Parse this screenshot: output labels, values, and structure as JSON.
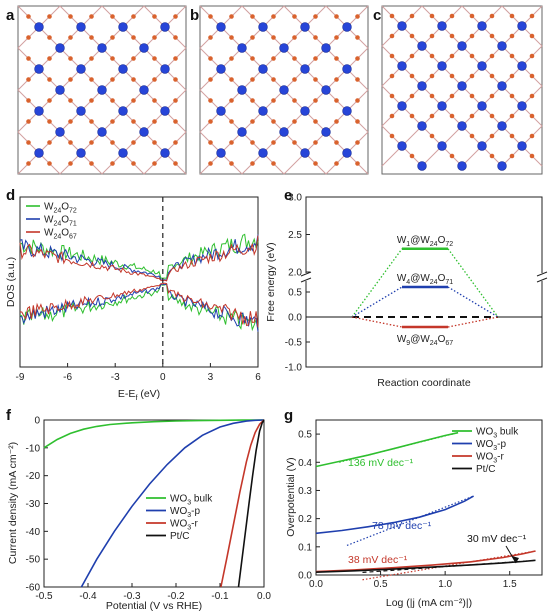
{
  "panel_labels": {
    "a": "a",
    "b": "b",
    "c": "c",
    "d": "d",
    "e": "e",
    "f": "f",
    "g": "g"
  },
  "colors": {
    "green": "#2fbf2f",
    "blue": "#1f3fae",
    "red": "#c4372a",
    "black": "#111111",
    "tungsten": "#2745d8",
    "oxygen": "#d9622e",
    "bond": "#d2a0a0"
  },
  "structures": [
    {
      "panel": "a",
      "vacancies": 0
    },
    {
      "panel": "b",
      "vacancies": 1
    },
    {
      "panel": "c",
      "vacancies": 5
    }
  ],
  "chart_data": [
    {
      "panel": "d",
      "type": "line",
      "xlabel": "E-E_f (eV)",
      "ylabel": "DOS (a.u.)",
      "xlim": [
        -9,
        6
      ],
      "xticks": [
        "-9",
        "-6",
        "-3",
        "0",
        "3",
        "6"
      ],
      "vline_x": 0,
      "series": [
        {
          "name": "W24O72",
          "sub1": "24",
          "sub2": "72",
          "color": "#2fbf2f"
        },
        {
          "name": "W24O71",
          "sub1": "24",
          "sub2": "71",
          "color": "#1f3fae"
        },
        {
          "name": "W24O67",
          "sub1": "24",
          "sub2": "67",
          "color": "#c4372a"
        }
      ]
    },
    {
      "panel": "e",
      "type": "line",
      "xlabel": "Reaction coordinate",
      "ylabel": "Free energy (eV)",
      "yticks_upper": [
        "2.0",
        "2.5",
        "3.0"
      ],
      "yticks_lower": [
        "-1.0",
        "-0.5",
        "0.0",
        "0.5"
      ],
      "ylim_upper": [
        2.0,
        3.0
      ],
      "ylim_lower": [
        -1.0,
        0.7
      ],
      "states": [
        {
          "label_main": "W",
          "label_sub1": "1",
          "label_mid": "@W",
          "label_sub2": "24",
          "label_mid2": "O",
          "label_sub3": "72",
          "dG": 2.31,
          "color": "#2fbf2f"
        },
        {
          "label_main": "W",
          "label_sub1": "4",
          "label_mid": "@W",
          "label_sub2": "24",
          "label_mid2": "O",
          "label_sub3": "71",
          "dG": 0.6,
          "color": "#1f3fae"
        },
        {
          "label_main": "W",
          "label_sub1": "9",
          "label_mid": "@W",
          "label_sub2": "24",
          "label_mid2": "O",
          "label_sub3": "67",
          "dG": -0.2,
          "color": "#c4372a"
        }
      ]
    },
    {
      "panel": "f",
      "type": "line",
      "xlabel": "Potential (V vs RHE)",
      "ylabel": "Current density (mA cm⁻²)",
      "xlim": [
        -0.5,
        0.0
      ],
      "ylim": [
        -60,
        0
      ],
      "xticks": [
        "-0.5",
        "-0.4",
        "-0.3",
        "-0.2",
        "-0.1",
        "0.0"
      ],
      "yticks": [
        "0",
        "-10",
        "-20",
        "-30",
        "-40",
        "-50",
        "-60"
      ],
      "series": [
        {
          "name": "WO3 bulk",
          "label_main": "WO",
          "label_sub": "3",
          "label_tail": " bulk",
          "color": "#2fbf2f",
          "x": [
            -0.5,
            -0.47,
            -0.44,
            -0.41,
            -0.38,
            -0.35,
            -0.3,
            -0.25,
            -0.2,
            -0.15,
            -0.1,
            -0.05,
            0.0
          ],
          "y": [
            -10,
            -7,
            -4.8,
            -3.3,
            -2.3,
            -1.6,
            -1.0,
            -0.6,
            -0.35,
            -0.2,
            -0.1,
            -0.05,
            0
          ]
        },
        {
          "name": "WO3-p",
          "label_main": "WO",
          "label_sub": "3",
          "label_tail": "-p",
          "color": "#1f3fae",
          "x": [
            -0.415,
            -0.38,
            -0.34,
            -0.3,
            -0.26,
            -0.22,
            -0.18,
            -0.14,
            -0.1,
            -0.07,
            -0.04,
            -0.02,
            0.0
          ],
          "y": [
            -60,
            -50,
            -40,
            -31,
            -23,
            -16,
            -10,
            -5.5,
            -2.5,
            -1.2,
            -0.4,
            -0.1,
            0
          ]
        },
        {
          "name": "WO3-r",
          "label_main": "WO",
          "label_sub": "3",
          "label_tail": "-r",
          "color": "#c4372a",
          "x": [
            -0.098,
            -0.085,
            -0.07,
            -0.055,
            -0.04,
            -0.03,
            -0.02,
            -0.01,
            0.0
          ],
          "y": [
            -60,
            -50,
            -38,
            -26,
            -15,
            -9,
            -4.5,
            -1.5,
            0
          ]
        },
        {
          "name": "Pt/C",
          "label_main": "Pt/C",
          "label_sub": "",
          "label_tail": "",
          "color": "#111111",
          "x": [
            -0.058,
            -0.05,
            -0.042,
            -0.034,
            -0.026,
            -0.018,
            -0.01,
            -0.004,
            0.0
          ],
          "y": [
            -60,
            -50,
            -40,
            -30,
            -20,
            -11,
            -4,
            -1,
            0
          ]
        }
      ]
    },
    {
      "panel": "g",
      "type": "line",
      "xlabel": "Log (|j (mA cm⁻²)|)",
      "ylabel": "Overpotential (V)",
      "xlim": [
        0.0,
        1.75
      ],
      "ylim": [
        0.0,
        0.55
      ],
      "xticks": [
        "0.0",
        "0.5",
        "1.0",
        "1.5"
      ],
      "yticks": [
        "0.0",
        "0.1",
        "0.2",
        "0.3",
        "0.4",
        "0.5"
      ],
      "annotations": [
        {
          "label": "136 mV dec⁻¹",
          "color": "#2fbf2f"
        },
        {
          "label": "78 mV dec⁻¹",
          "color": "#1f3fae"
        },
        {
          "label": "38 mV dec⁻¹",
          "color": "#c4372a"
        },
        {
          "label": "30 mV dec⁻¹",
          "color": "#111111"
        }
      ],
      "series": [
        {
          "name": "WO3 bulk",
          "label_main": "WO",
          "label_sub": "3",
          "label_tail": " bulk",
          "color": "#2fbf2f",
          "x": [
            0.0,
            0.2,
            0.4,
            0.6,
            0.8,
            1.0,
            1.1
          ],
          "y": [
            0.385,
            0.405,
            0.425,
            0.448,
            0.472,
            0.495,
            0.505
          ]
        },
        {
          "name": "WO3-p",
          "label_main": "WO",
          "label_sub": "3",
          "label_tail": "-p",
          "color": "#1f3fae",
          "x": [
            0.0,
            0.2,
            0.4,
            0.6,
            0.8,
            1.0,
            1.15,
            1.22
          ],
          "y": [
            0.148,
            0.158,
            0.171,
            0.186,
            0.205,
            0.232,
            0.262,
            0.28
          ]
        },
        {
          "name": "WO3-r",
          "label_main": "WO",
          "label_sub": "3",
          "label_tail": "-r",
          "color": "#c4372a",
          "x": [
            0.0,
            0.3,
            0.6,
            0.9,
            1.2,
            1.45,
            1.6,
            1.7
          ],
          "y": [
            0.012,
            0.018,
            0.026,
            0.035,
            0.047,
            0.062,
            0.075,
            0.085
          ]
        },
        {
          "name": "Pt/C",
          "label_main": "Pt/C",
          "label_sub": "",
          "label_tail": "",
          "color": "#111111",
          "x": [
            0.0,
            0.3,
            0.6,
            0.9,
            1.2,
            1.45,
            1.6,
            1.7
          ],
          "y": [
            0.01,
            0.015,
            0.021,
            0.028,
            0.036,
            0.043,
            0.048,
            0.052
          ]
        }
      ]
    }
  ]
}
